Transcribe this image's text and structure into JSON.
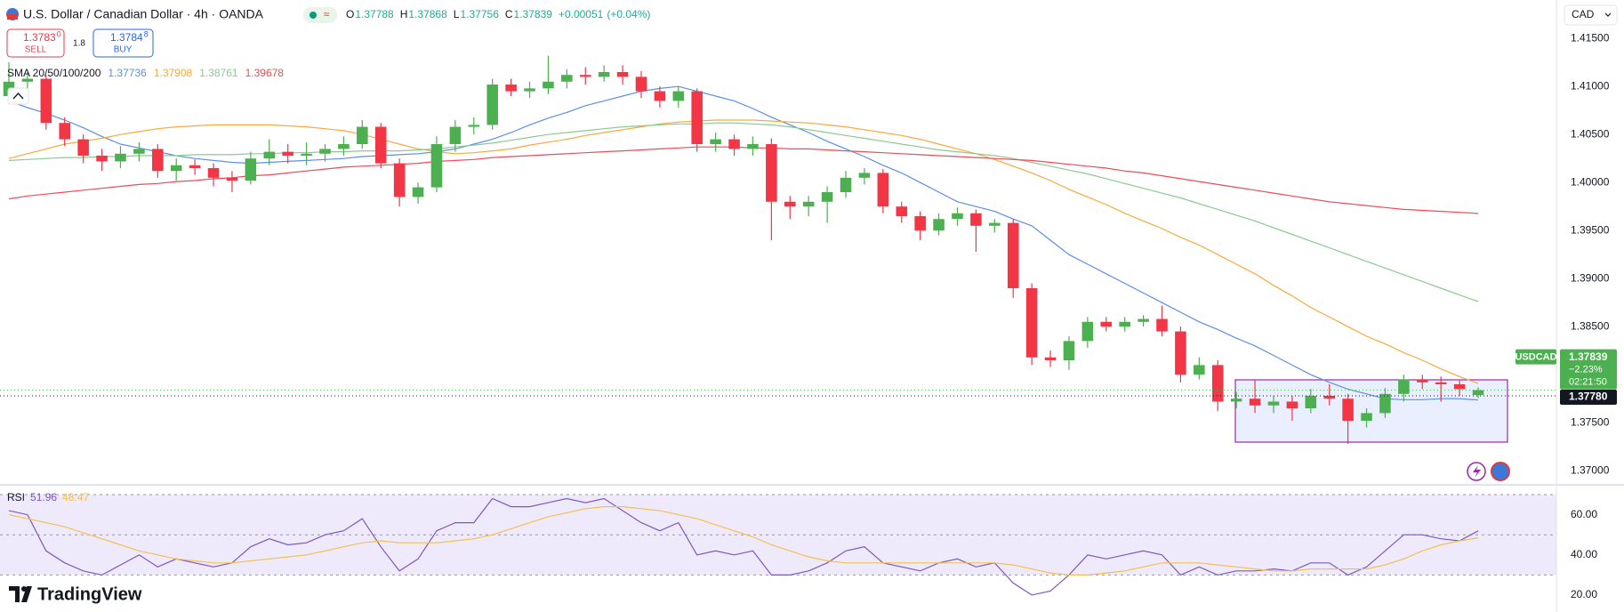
{
  "chart_data": [
    {
      "type": "candlestick",
      "title": "U.S. Dollar / Canadian Dollar · 4h · OANDA",
      "ohlc_labels": [
        "O",
        "H",
        "L",
        "C"
      ],
      "change": "+0.00051",
      "change_pct": "(+0.04%)",
      "sell": {
        "price": "1.3783",
        "pip": "0",
        "label": "SELL"
      },
      "buy": {
        "price": "1.3784",
        "pip": "8",
        "label": "BUY"
      },
      "spread": 1.8,
      "indicator_label": "SMA 20/50/100/200",
      "currency": "CAD",
      "symbol": "USDCAD",
      "day_change": "−2.23%",
      "countdown": "02:21:50",
      "bid": {
        "value": 1.3778,
        "label": "1.37780"
      },
      "brand": "TradingView",
      "up_color": "#4caf50",
      "down_color": "#f23645",
      "open": [
        1.409,
        1.4105,
        1.4108,
        1.4062,
        1.4045,
        1.4028,
        1.4022,
        1.403,
        1.4035,
        1.4012,
        1.4018,
        1.4015,
        1.4005,
        1.4002,
        1.4025,
        1.4032,
        1.4028,
        1.403,
        1.4035,
        1.404,
        1.4058,
        1.402,
        1.3985,
        1.3995,
        1.404,
        1.4058,
        1.406,
        1.4102,
        1.4095,
        1.4098,
        1.4105,
        1.4112,
        1.411,
        1.4115,
        1.411,
        1.4095,
        1.4085,
        1.4095,
        1.404,
        1.4045,
        1.4035,
        1.404,
        1.398,
        1.3975,
        1.398,
        1.399,
        1.4005,
        1.401,
        1.3975,
        1.3965,
        1.395,
        1.3962,
        1.3968,
        1.3955,
        1.3958,
        1.389,
        1.3818,
        1.3815,
        1.3835,
        1.3855,
        1.385,
        1.3855,
        1.3858,
        1.3845,
        1.38,
        1.381,
        1.3772,
        1.3775,
        1.3768,
        1.3772,
        1.3765,
        1.3778,
        1.3775,
        1.3752,
        1.376,
        1.378,
        1.3795,
        1.3792,
        1.379,
        1.37788
      ],
      "high": [
        1.4125,
        1.4115,
        1.4112,
        1.4068,
        1.405,
        1.4035,
        1.4038,
        1.4042,
        1.404,
        1.4025,
        1.4024,
        1.402,
        1.4012,
        1.4032,
        1.4045,
        1.404,
        1.4042,
        1.404,
        1.4048,
        1.4065,
        1.4062,
        1.4025,
        1.4,
        1.4048,
        1.4065,
        1.4068,
        1.4108,
        1.4108,
        1.4105,
        1.4132,
        1.4118,
        1.412,
        1.4122,
        1.4122,
        1.4116,
        1.41,
        1.41,
        1.4098,
        1.4052,
        1.405,
        1.4048,
        1.4046,
        1.3986,
        1.3986,
        1.3996,
        1.4012,
        1.4015,
        1.4014,
        1.398,
        1.397,
        1.3968,
        1.3974,
        1.3972,
        1.3962,
        1.3962,
        1.3895,
        1.3825,
        1.384,
        1.386,
        1.386,
        1.386,
        1.3862,
        1.3872,
        1.385,
        1.3818,
        1.3815,
        1.3782,
        1.3795,
        1.3778,
        1.3778,
        1.3785,
        1.379,
        1.378,
        1.3765,
        1.3786,
        1.38,
        1.38,
        1.3798,
        1.3795,
        1.37868
      ],
      "low": [
        1.4082,
        1.4098,
        1.4055,
        1.4038,
        1.402,
        1.4012,
        1.4015,
        1.4022,
        1.4005,
        1.4002,
        1.4008,
        1.3996,
        1.399,
        1.3998,
        1.4018,
        1.402,
        1.4018,
        1.4022,
        1.4028,
        1.4035,
        1.4015,
        1.3975,
        1.3978,
        1.399,
        1.4032,
        1.405,
        1.4055,
        1.409,
        1.4088,
        1.4092,
        1.4098,
        1.4102,
        1.4105,
        1.4102,
        1.4088,
        1.4078,
        1.4078,
        1.4032,
        1.4032,
        1.4028,
        1.4028,
        1.394,
        1.3962,
        1.3965,
        1.3958,
        1.3984,
        1.3998,
        1.3968,
        1.3958,
        1.394,
        1.3945,
        1.3955,
        1.3928,
        1.3948,
        1.388,
        1.381,
        1.3808,
        1.3805,
        1.3828,
        1.3845,
        1.3845,
        1.385,
        1.384,
        1.3792,
        1.3795,
        1.3762,
        1.3765,
        1.376,
        1.376,
        1.3752,
        1.376,
        1.3768,
        1.3728,
        1.3745,
        1.3755,
        1.3772,
        1.3785,
        1.3772,
        1.3778,
        1.37756
      ],
      "close": [
        1.4105,
        1.4108,
        1.4062,
        1.4045,
        1.4028,
        1.4022,
        1.403,
        1.4035,
        1.4012,
        1.4018,
        1.4015,
        1.4005,
        1.4002,
        1.4025,
        1.4032,
        1.4028,
        1.403,
        1.4035,
        1.404,
        1.4058,
        1.402,
        1.3985,
        1.3995,
        1.404,
        1.4058,
        1.406,
        1.4102,
        1.4095,
        1.4098,
        1.4105,
        1.4112,
        1.411,
        1.4115,
        1.411,
        1.4095,
        1.4085,
        1.4095,
        1.404,
        1.4045,
        1.4035,
        1.404,
        1.398,
        1.3975,
        1.398,
        1.399,
        1.4005,
        1.401,
        1.3975,
        1.3965,
        1.395,
        1.3962,
        1.3968,
        1.3955,
        1.3958,
        1.389,
        1.3818,
        1.3815,
        1.3835,
        1.3855,
        1.385,
        1.3855,
        1.3858,
        1.3845,
        1.38,
        1.381,
        1.3772,
        1.3775,
        1.3768,
        1.3772,
        1.3765,
        1.3778,
        1.3775,
        1.3752,
        1.376,
        1.378,
        1.3795,
        1.3792,
        1.379,
        1.3785,
        1.37839
      ],
      "series": [
        {
          "color": "#5b8fe8",
          "values": [
            1.4085,
            1.4078,
            1.4072,
            1.4065,
            1.4057,
            1.4048,
            1.404,
            1.4036,
            1.4032,
            1.4028,
            1.4025,
            1.4023,
            1.4021,
            1.402,
            1.4021,
            1.4022,
            1.4023,
            1.4024,
            1.4025,
            1.4027,
            1.4028,
            1.4029,
            1.403,
            1.4032,
            1.4035,
            1.404,
            1.4045,
            1.4052,
            1.406,
            1.4067,
            1.4073,
            1.408,
            1.4085,
            1.409,
            1.4095,
            1.4098,
            1.41,
            1.4095,
            1.409,
            1.4085,
            1.4077,
            1.4068,
            1.406,
            1.4052,
            1.4043,
            1.4035,
            1.4027,
            1.4018,
            1.401,
            1.4,
            1.399,
            1.398,
            1.3975,
            1.397,
            1.3962,
            1.3955,
            1.394,
            1.3925,
            1.3915,
            1.3905,
            1.3895,
            1.3885,
            1.3875,
            1.3865,
            1.3855,
            1.3847,
            1.3838,
            1.383,
            1.382,
            1.381,
            1.38,
            1.3792,
            1.3785,
            1.378,
            1.3775,
            1.3774,
            1.3774,
            1.3775,
            1.3775,
            1.37736
          ]
        },
        {
          "color": "#f7a93b",
          "values": [
            1.4025,
            1.403,
            1.4035,
            1.404,
            1.4043,
            1.4046,
            1.405,
            1.4053,
            1.4056,
            1.4058,
            1.4059,
            1.406,
            1.406,
            1.406,
            1.406,
            1.4059,
            1.4058,
            1.4056,
            1.4054,
            1.405,
            1.4045,
            1.404,
            1.4035,
            1.4032,
            1.403,
            1.4031,
            1.4033,
            1.4035,
            1.4039,
            1.4042,
            1.4045,
            1.4049,
            1.4052,
            1.4055,
            1.4058,
            1.4061,
            1.4063,
            1.4064,
            1.4065,
            1.4065,
            1.4065,
            1.4064,
            1.4063,
            1.4062,
            1.406,
            1.4058,
            1.4055,
            1.4052,
            1.4049,
            1.4045,
            1.404,
            1.4035,
            1.403,
            1.4024,
            1.4017,
            1.401,
            1.4002,
            1.3993,
            1.3985,
            1.3977,
            1.3968,
            1.396,
            1.3952,
            1.3943,
            1.3935,
            1.3925,
            1.3915,
            1.3905,
            1.3893,
            1.3882,
            1.387,
            1.386,
            1.385,
            1.384,
            1.3832,
            1.3823,
            1.3815,
            1.3806,
            1.3798,
            1.37908
          ]
        },
        {
          "color": "#8cc991",
          "values": [
            1.4023,
            1.4024,
            1.4025,
            1.4026,
            1.4026,
            1.4027,
            1.4027,
            1.4028,
            1.4028,
            1.4028,
            1.4029,
            1.4029,
            1.4029,
            1.403,
            1.403,
            1.4031,
            1.4031,
            1.4032,
            1.4032,
            1.4033,
            1.4033,
            1.4033,
            1.4034,
            1.4035,
            1.4037,
            1.4039,
            1.4041,
            1.4044,
            1.4047,
            1.405,
            1.4052,
            1.4054,
            1.4056,
            1.4058,
            1.4059,
            1.406,
            1.4061,
            1.4061,
            1.4062,
            1.4062,
            1.4061,
            1.406,
            1.4058,
            1.4055,
            1.4052,
            1.4049,
            1.4046,
            1.4043,
            1.404,
            1.4037,
            1.4034,
            1.4032,
            1.403,
            1.4028,
            1.4025,
            1.4021,
            1.4017,
            1.4013,
            1.4009,
            1.4004,
            1.3999,
            1.3994,
            1.3989,
            1.3984,
            1.3978,
            1.3972,
            1.3966,
            1.396,
            1.3953,
            1.3946,
            1.3939,
            1.3932,
            1.3925,
            1.3918,
            1.3911,
            1.3904,
            1.3897,
            1.389,
            1.3883,
            1.38761
          ]
        },
        {
          "color": "#ef4b55",
          "values": [
            1.3983,
            1.3986,
            1.3988,
            1.399,
            1.3992,
            1.3994,
            1.3996,
            1.3998,
            1.3999,
            1.4001,
            1.4002,
            1.4004,
            1.4005,
            1.4007,
            1.4008,
            1.401,
            1.4012,
            1.4014,
            1.4016,
            1.4017,
            1.4018,
            1.4019,
            1.402,
            1.4022,
            1.4023,
            1.4024,
            1.4026,
            1.4027,
            1.4028,
            1.4029,
            1.403,
            1.4031,
            1.4032,
            1.4033,
            1.4034,
            1.4035,
            1.4036,
            1.4037,
            1.4037,
            1.4037,
            1.4036,
            1.4036,
            1.4035,
            1.4035,
            1.4034,
            1.4033,
            1.4032,
            1.4031,
            1.403,
            1.4029,
            1.4028,
            1.4027,
            1.4026,
            1.4025,
            1.4024,
            1.4023,
            1.4021,
            1.4019,
            1.4017,
            1.4015,
            1.4012,
            1.401,
            1.4007,
            1.4004,
            1.4001,
            1.3998,
            1.3995,
            1.3992,
            1.3989,
            1.3986,
            1.3983,
            1.398,
            1.3978,
            1.3976,
            1.3974,
            1.3972,
            1.3971,
            1.397,
            1.3969,
            1.39678
          ]
        }
      ],
      "ylim": [
        1.369,
        1.419
      ],
      "yticks": [
        {
          "value": 1.37,
          "label": "1.37000"
        },
        {
          "value": 1.375,
          "label": "1.37500"
        },
        {
          "value": 1.38,
          "label": "1.38000"
        },
        {
          "value": 1.385,
          "label": "1.38500"
        },
        {
          "value": 1.39,
          "label": "1.39000"
        },
        {
          "value": 1.395,
          "label": "1.39500"
        },
        {
          "value": 1.4,
          "label": "1.40000"
        },
        {
          "value": 1.405,
          "label": "1.40500"
        },
        {
          "value": 1.41,
          "label": "1.41000"
        },
        {
          "value": 1.415,
          "label": "1.41500"
        }
      ],
      "grid": false
    },
    {
      "type": "line",
      "title": "RSI",
      "series": [
        {
          "color": "#7e57c2",
          "values": [
            62,
            60,
            42,
            36,
            32,
            30,
            35,
            40,
            34,
            38,
            36,
            34,
            36,
            44,
            48,
            45,
            46,
            50,
            52,
            58,
            44,
            32,
            38,
            52,
            56,
            56,
            68,
            64,
            64,
            66,
            68,
            66,
            68,
            62,
            56,
            52,
            56,
            40,
            42,
            40,
            42,
            30,
            30,
            32,
            36,
            42,
            44,
            36,
            34,
            32,
            36,
            38,
            34,
            36,
            26,
            20,
            22,
            30,
            40,
            38,
            40,
            42,
            40,
            30,
            34,
            30,
            32,
            32,
            33,
            32,
            36,
            36,
            30,
            34,
            42,
            50,
            50,
            48,
            47,
            51.96
          ]
        },
        {
          "color": "#f2c14e",
          "values": [
            60,
            58,
            56,
            54,
            51,
            48,
            45,
            42,
            40,
            38,
            37,
            36,
            36,
            37,
            38,
            39,
            40,
            42,
            44,
            46,
            47,
            46,
            46,
            46,
            47,
            48,
            50,
            53,
            56,
            59,
            61,
            63,
            64,
            64,
            63,
            62,
            60,
            58,
            55,
            52,
            49,
            45,
            42,
            39,
            37,
            36,
            36,
            36,
            36,
            36,
            36,
            36,
            36,
            36,
            35,
            33,
            31,
            30,
            30,
            31,
            32,
            34,
            36,
            36,
            36,
            35,
            34,
            33,
            32,
            32,
            33,
            33,
            33,
            33,
            35,
            38,
            42,
            45,
            47,
            48.47
          ]
        }
      ],
      "ylim": [
        12,
        74
      ],
      "yticks": [
        {
          "value": 20,
          "label": "20.00"
        },
        {
          "value": 40,
          "label": "40.00"
        },
        {
          "value": 60,
          "label": "60.00"
        }
      ],
      "levels": [
        70,
        50,
        30
      ],
      "band_color": "#efeafb"
    }
  ]
}
